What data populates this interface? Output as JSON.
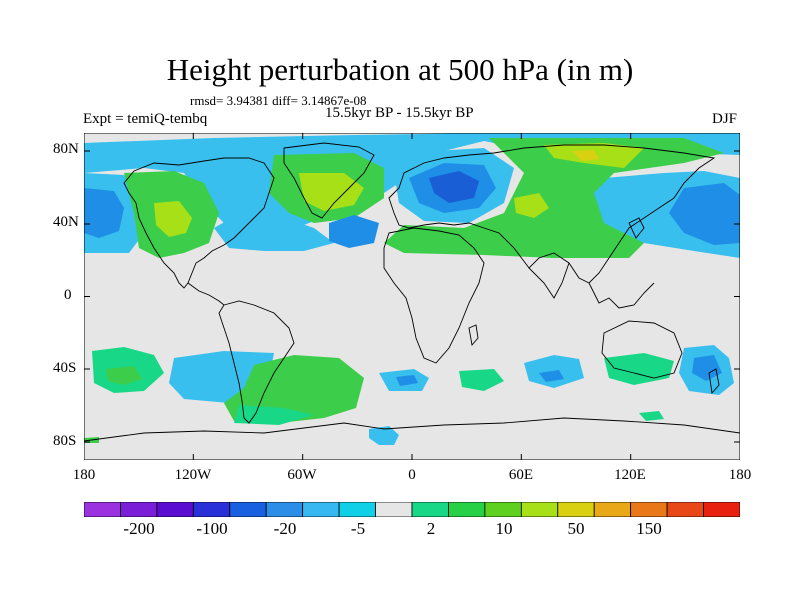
{
  "title": "Height perturbation at 500 hPa (in m)",
  "stats_text": "rmsd= 3.94381 diff= 3.14867e-08",
  "experiment_text": "Expt = temiQ-tembq",
  "period_text": "15.5kyr BP - 15.5kyr BP",
  "season": "DJF",
  "lat_ticks": [
    "80N",
    "40N",
    "0",
    "40S",
    "80S"
  ],
  "lon_ticks": [
    "180",
    "120W",
    "60W",
    "0",
    "60E",
    "120E",
    "180"
  ],
  "colorbar": {
    "colors": [
      "#9a32e0",
      "#7a1ed8",
      "#5a0cd0",
      "#2a30d8",
      "#1860e0",
      "#2c8ee6",
      "#38b8f0",
      "#10d0e8",
      "#e6e6e6",
      "#18d888",
      "#28d048",
      "#60d020",
      "#a8e018",
      "#d8d010",
      "#e8a818",
      "#e87818",
      "#e84818",
      "#e82010"
    ],
    "labels": [
      "-200",
      "-100",
      "-20",
      "-5",
      "2",
      "10",
      "50",
      "150"
    ]
  },
  "region_colors": {
    "ocean_bg": "#e6e6e6",
    "light_blue": "#38bfee",
    "mid_blue": "#1e8ee6",
    "dark_blue": "#1a5ed6",
    "aqua_green": "#18d888",
    "green": "#3ccd4a",
    "yellow_green": "#a8e018",
    "yellow": "#d8d010"
  }
}
